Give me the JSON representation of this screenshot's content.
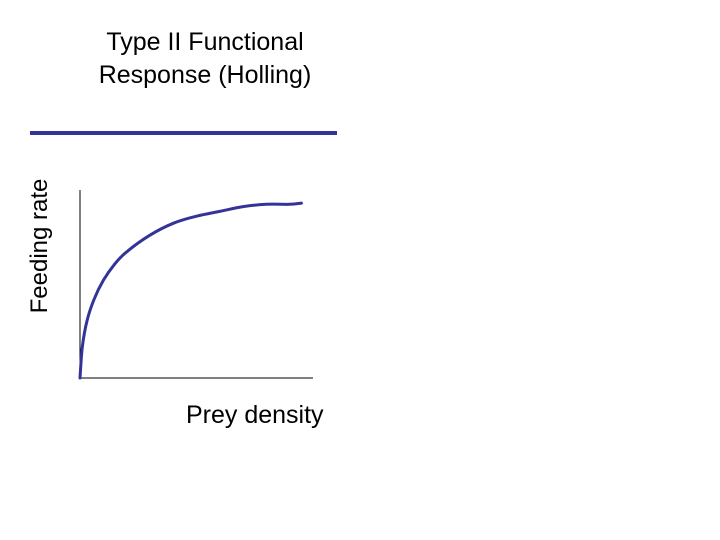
{
  "chart_data": {
    "type": "line",
    "title_lines": [
      "Type II Functional",
      "Response (Holling)"
    ],
    "xlabel": "Prey density",
    "ylabel": "Feeding rate",
    "xlim": [
      0,
      1
    ],
    "ylim": [
      0,
      1
    ],
    "grid": false,
    "series": [
      {
        "x": [
          0,
          0.01,
          0.03,
          0.06,
          0.1,
          0.15,
          0.2,
          0.3,
          0.4,
          0.5,
          0.6,
          0.7,
          0.8,
          0.9,
          0.95
        ],
        "y": [
          0,
          0.13,
          0.24,
          0.33,
          0.41,
          0.48,
          0.53,
          0.6,
          0.65,
          0.68,
          0.7,
          0.72,
          0.73,
          0.73,
          0.735
        ]
      }
    ]
  },
  "colors": {
    "curve": "#333399",
    "title_rule": "#333399",
    "axis": "#000000"
  }
}
